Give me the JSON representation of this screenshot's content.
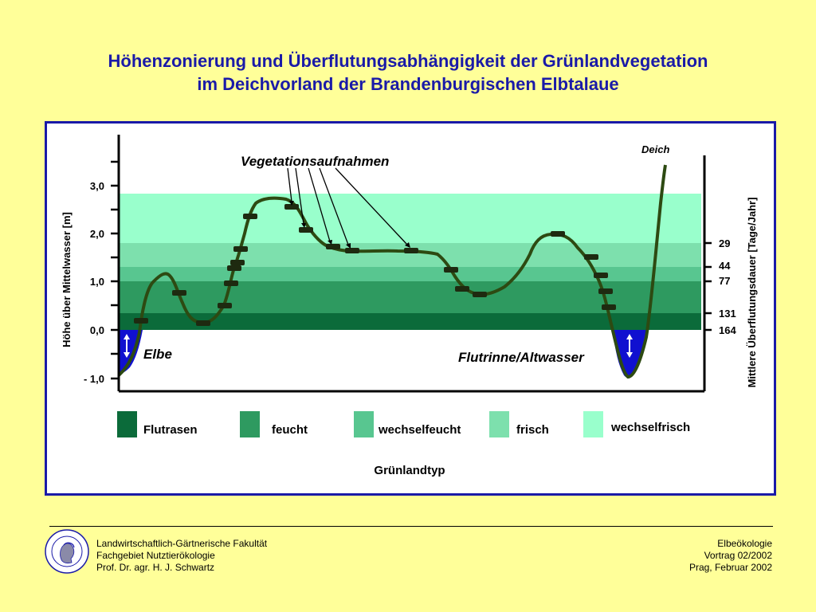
{
  "title": {
    "line1": "Höhenzonierung und Überflutungsabhängigkeit der Grünlandvegetation",
    "line2": "im Deichvorland der Brandenburgischen Elbtalaue"
  },
  "diagram": {
    "y_axis_label": "Höhe über Mittelwasser [m]",
    "y_ticks": [
      "3,0",
      "2,0",
      "1,0",
      "0,0",
      "- 1,0"
    ],
    "right_axis_label": "Mittlere Überflutungsdauer [Tage/Jahr]",
    "right_ticks": [
      "29",
      "44",
      "77",
      "131",
      "164"
    ],
    "annotation": "Vegetationsaufnahmen",
    "deich_label": "Deich",
    "elbe_label": "Elbe",
    "altwasser_label": "Flutrinne/Altwasser",
    "x_axis_label": "Grünlandtyp",
    "legend": [
      {
        "label": "Flutrasen",
        "color": "#0b6b3a"
      },
      {
        "label": "feucht",
        "color": "#2e9a60"
      },
      {
        "label": "wechselfeucht",
        "color": "#58c690"
      },
      {
        "label": "frisch",
        "color": "#7de0ad"
      },
      {
        "label": "wechselfrisch",
        "color": "#99ffcc"
      }
    ],
    "colors": {
      "water": "#1010d0",
      "profile_line": "#2d4a12",
      "frame": "#1a1aa8"
    }
  },
  "footer": {
    "left": [
      "Landwirtschaftlich-Gärtnerische Fakultät",
      "Fachgebiet Nutztierökologie",
      "Prof. Dr. agr. H. J. Schwartz"
    ],
    "right": [
      "Elbeökologie",
      "Vortrag 02/2002",
      "Prag, Februar 2002"
    ]
  }
}
